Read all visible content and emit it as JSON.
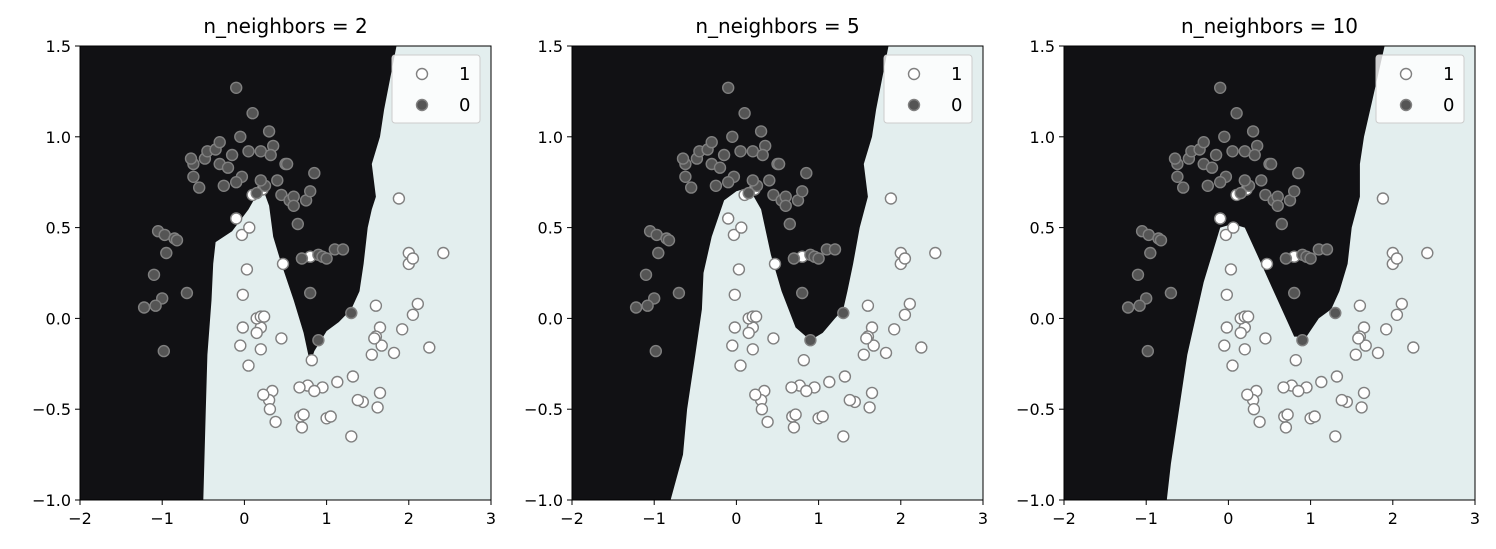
{
  "colors": {
    "class1_region": "#e3eeee",
    "class0_region": "#111114",
    "class1_fill": "#ffffff",
    "class0_fill": "#555555",
    "marker_edge": "#808080"
  },
  "chart_data": [
    {
      "type": "scatter",
      "title": "n_neighbors = 2",
      "xlim": [
        -2,
        3
      ],
      "ylim": [
        -1,
        1.5
      ],
      "xticks": [
        -2,
        -1,
        0,
        1,
        2,
        3
      ],
      "xtick_labels": [
        "−2",
        "−1",
        "0",
        "1",
        "2",
        "3"
      ],
      "yticks": [
        -1.0,
        -0.5,
        0.0,
        0.5,
        1.0,
        1.5
      ],
      "ytick_labels": [
        "−1.0",
        "−0.5",
        "0.0",
        "0.5",
        "1.0",
        "1.5"
      ],
      "grid": false,
      "legend_position": "top-right",
      "decision_boundary": [
        [
          1.85,
          1.5
        ],
        [
          1.7,
          1.15
        ],
        [
          1.65,
          1.0
        ],
        [
          1.55,
          0.85
        ],
        [
          1.6,
          0.67
        ],
        [
          1.55,
          0.6
        ],
        [
          1.5,
          0.5
        ],
        [
          1.45,
          0.3
        ],
        [
          1.4,
          0.15
        ],
        [
          1.3,
          0.05
        ],
        [
          1.15,
          -0.02
        ],
        [
          1.0,
          -0.07
        ],
        [
          0.85,
          -0.18
        ],
        [
          0.8,
          -0.25
        ],
        [
          0.72,
          -0.08
        ],
        [
          0.6,
          0.1
        ],
        [
          0.45,
          0.3
        ],
        [
          0.35,
          0.45
        ],
        [
          0.3,
          0.62
        ],
        [
          0.22,
          0.72
        ],
        [
          0.15,
          0.68
        ],
        [
          0.05,
          0.6
        ],
        [
          -0.15,
          0.48
        ],
        [
          -0.35,
          0.42
        ],
        [
          -0.38,
          0.3
        ],
        [
          -0.4,
          0.1
        ],
        [
          -0.45,
          -0.2
        ],
        [
          -0.47,
          -0.5
        ],
        [
          -0.5,
          -1.0
        ]
      ],
      "series": [
        {
          "name": "1",
          "x": [
            1.88,
            2.0,
            2.0,
            2.11,
            2.42,
            2.05,
            1.6,
            2.05,
            1.92,
            1.65,
            1.6,
            1.67,
            1.82,
            1.55,
            1.58,
            1.65,
            1.44,
            1.38,
            1.3,
            1.13,
            1.32,
            1.0,
            1.05,
            0.95,
            0.77,
            0.67,
            0.7,
            0.82,
            0.68,
            0.72,
            0.38,
            0.34,
            0.3,
            0.31,
            0.23,
            0.2,
            0.15,
            0.2,
            0.05,
            -0.05,
            -0.02,
            0.03,
            -0.02,
            -0.03,
            0.15,
            0.2,
            0.24,
            0.47,
            0.45,
            0.85,
            2.25,
            1.62,
            0.8,
            0.22,
            0.1,
            0.06,
            -0.1
          ],
          "y": [
            0.66,
            0.36,
            0.3,
            0.08,
            0.36,
            0.02,
            0.07,
            0.33,
            -0.06,
            -0.05,
            -0.1,
            -0.15,
            -0.19,
            -0.2,
            -0.11,
            -0.41,
            -0.46,
            -0.45,
            -0.65,
            -0.35,
            -0.32,
            -0.55,
            -0.54,
            -0.38,
            -0.37,
            -0.38,
            -0.6,
            -0.23,
            -0.54,
            -0.53,
            -0.57,
            -0.4,
            -0.45,
            -0.5,
            -0.42,
            -0.05,
            -0.08,
            -0.17,
            -0.26,
            -0.15,
            -0.05,
            0.27,
            0.13,
            0.46,
            0.0,
            0.01,
            0.01,
            0.3,
            -0.11,
            -0.4,
            -0.16,
            -0.49,
            0.34,
            0.71,
            0.68,
            0.5,
            0.55
          ]
        },
        {
          "name": "0",
          "x": [
            -1.05,
            -0.97,
            -0.85,
            -0.82,
            -1.1,
            -0.95,
            -0.7,
            -1.0,
            -1.08,
            -1.22,
            -0.98,
            -0.62,
            -0.62,
            -0.55,
            -0.48,
            -0.45,
            -0.35,
            -0.3,
            -0.25,
            -0.2,
            -0.15,
            -0.1,
            -0.05,
            -0.03,
            0.05,
            0.1,
            0.15,
            0.2,
            0.25,
            0.3,
            0.35,
            0.4,
            0.45,
            0.5,
            0.55,
            0.6,
            0.65,
            0.7,
            0.75,
            0.8,
            0.85,
            0.9,
            0.95,
            1.0,
            1.1,
            1.2,
            0.8,
            0.9,
            -0.1,
            0.32,
            0.52,
            1.3,
            0.6,
            -0.65,
            -0.3,
            0.2
          ],
          "y": [
            0.48,
            0.46,
            0.44,
            0.43,
            0.24,
            0.36,
            0.14,
            0.11,
            0.07,
            0.06,
            -0.18,
            0.85,
            0.78,
            0.72,
            0.88,
            0.92,
            0.93,
            0.85,
            0.73,
            0.83,
            0.9,
            1.27,
            1.0,
            0.78,
            0.92,
            1.13,
            0.69,
            0.92,
            0.73,
            1.03,
            0.95,
            0.76,
            0.68,
            0.85,
            0.65,
            0.67,
            0.52,
            0.33,
            0.65,
            0.7,
            0.8,
            0.35,
            0.34,
            0.33,
            0.38,
            0.38,
            0.14,
            -0.12,
            0.75,
            0.9,
            0.85,
            0.03,
            0.62,
            0.88,
            0.97,
            0.76
          ]
        }
      ]
    },
    {
      "type": "scatter",
      "title": "n_neighbors = 5",
      "xlim": [
        -2,
        3
      ],
      "ylim": [
        -1,
        1.5
      ],
      "xticks": [
        -2,
        -1,
        0,
        1,
        2,
        3
      ],
      "xtick_labels": [
        "−2",
        "−1",
        "0",
        "1",
        "2",
        "3"
      ],
      "yticks": [
        -1.0,
        -0.5,
        0.0,
        0.5,
        1.0,
        1.5
      ],
      "ytick_labels": [
        "−1.0",
        "−0.5",
        "0.0",
        "0.5",
        "1.0",
        "1.5"
      ],
      "grid": false,
      "legend_position": "top-right",
      "decision_boundary": [
        [
          1.85,
          1.5
        ],
        [
          1.7,
          1.15
        ],
        [
          1.65,
          1.0
        ],
        [
          1.55,
          0.85
        ],
        [
          1.6,
          0.67
        ],
        [
          1.5,
          0.5
        ],
        [
          1.42,
          0.3
        ],
        [
          1.35,
          0.15
        ],
        [
          1.3,
          0.05
        ],
        [
          1.2,
          0.0
        ],
        [
          1.05,
          -0.08
        ],
        [
          0.9,
          -0.12
        ],
        [
          0.72,
          -0.05
        ],
        [
          0.55,
          0.15
        ],
        [
          0.42,
          0.35
        ],
        [
          0.3,
          0.6
        ],
        [
          0.15,
          0.72
        ],
        [
          0.0,
          0.7
        ],
        [
          -0.15,
          0.65
        ],
        [
          -0.3,
          0.45
        ],
        [
          -0.4,
          0.25
        ],
        [
          -0.42,
          0.05
        ],
        [
          -0.5,
          -0.2
        ],
        [
          -0.6,
          -0.5
        ],
        [
          -0.65,
          -0.75
        ],
        [
          -0.8,
          -1.0
        ]
      ],
      "series": [
        {
          "name": "1",
          "x": [
            1.88,
            2.0,
            2.0,
            2.11,
            2.42,
            2.05,
            1.6,
            2.05,
            1.92,
            1.65,
            1.6,
            1.67,
            1.82,
            1.55,
            1.58,
            1.65,
            1.44,
            1.38,
            1.3,
            1.13,
            1.32,
            1.0,
            1.05,
            0.95,
            0.77,
            0.67,
            0.7,
            0.82,
            0.68,
            0.72,
            0.38,
            0.34,
            0.3,
            0.31,
            0.23,
            0.2,
            0.15,
            0.2,
            0.05,
            -0.05,
            -0.02,
            0.03,
            -0.02,
            -0.03,
            0.15,
            0.2,
            0.24,
            0.47,
            0.45,
            0.85,
            2.25,
            1.62,
            0.8,
            0.22,
            0.1,
            0.06,
            -0.1
          ],
          "y": [
            0.66,
            0.36,
            0.3,
            0.08,
            0.36,
            0.02,
            0.07,
            0.33,
            -0.06,
            -0.05,
            -0.1,
            -0.15,
            -0.19,
            -0.2,
            -0.11,
            -0.41,
            -0.46,
            -0.45,
            -0.65,
            -0.35,
            -0.32,
            -0.55,
            -0.54,
            -0.38,
            -0.37,
            -0.38,
            -0.6,
            -0.23,
            -0.54,
            -0.53,
            -0.57,
            -0.4,
            -0.45,
            -0.5,
            -0.42,
            -0.05,
            -0.08,
            -0.17,
            -0.26,
            -0.15,
            -0.05,
            0.27,
            0.13,
            0.46,
            0.0,
            0.01,
            0.01,
            0.3,
            -0.11,
            -0.4,
            -0.16,
            -0.49,
            0.34,
            0.71,
            0.68,
            0.5,
            0.55
          ]
        },
        {
          "name": "0",
          "x": [
            -1.05,
            -0.97,
            -0.85,
            -0.82,
            -1.1,
            -0.95,
            -0.7,
            -1.0,
            -1.08,
            -1.22,
            -0.98,
            -0.62,
            -0.62,
            -0.55,
            -0.48,
            -0.45,
            -0.35,
            -0.3,
            -0.25,
            -0.2,
            -0.15,
            -0.1,
            -0.05,
            -0.03,
            0.05,
            0.1,
            0.15,
            0.2,
            0.25,
            0.3,
            0.35,
            0.4,
            0.45,
            0.5,
            0.55,
            0.6,
            0.65,
            0.7,
            0.75,
            0.8,
            0.85,
            0.9,
            0.95,
            1.0,
            1.1,
            1.2,
            0.8,
            0.9,
            -0.1,
            0.32,
            0.52,
            1.3,
            0.6,
            -0.65,
            -0.3,
            0.2
          ],
          "y": [
            0.48,
            0.46,
            0.44,
            0.43,
            0.24,
            0.36,
            0.14,
            0.11,
            0.07,
            0.06,
            -0.18,
            0.85,
            0.78,
            0.72,
            0.88,
            0.92,
            0.93,
            0.85,
            0.73,
            0.83,
            0.9,
            1.27,
            1.0,
            0.78,
            0.92,
            1.13,
            0.69,
            0.92,
            0.73,
            1.03,
            0.95,
            0.76,
            0.68,
            0.85,
            0.65,
            0.67,
            0.52,
            0.33,
            0.65,
            0.7,
            0.8,
            0.35,
            0.34,
            0.33,
            0.38,
            0.38,
            0.14,
            -0.12,
            0.75,
            0.9,
            0.85,
            0.03,
            0.62,
            0.88,
            0.97,
            0.76
          ]
        }
      ]
    },
    {
      "type": "scatter",
      "title": "n_neighbors = 10",
      "xlim": [
        -2,
        3
      ],
      "ylim": [
        -1,
        1.5
      ],
      "xticks": [
        -2,
        -1,
        0,
        1,
        2,
        3
      ],
      "xtick_labels": [
        "−2",
        "−1",
        "0",
        "1",
        "2",
        "3"
      ],
      "yticks": [
        -1.0,
        -0.5,
        0.0,
        0.5,
        1.0,
        1.5
      ],
      "ytick_labels": [
        "−1.0",
        "−0.5",
        "0.0",
        "0.5",
        "1.0",
        "1.5"
      ],
      "grid": false,
      "legend_position": "top-right",
      "decision_boundary": [
        [
          1.9,
          1.5
        ],
        [
          1.75,
          1.2
        ],
        [
          1.65,
          1.0
        ],
        [
          1.6,
          0.85
        ],
        [
          1.6,
          0.67
        ],
        [
          1.5,
          0.5
        ],
        [
          1.45,
          0.3
        ],
        [
          1.35,
          0.15
        ],
        [
          1.25,
          0.05
        ],
        [
          1.1,
          0.0
        ],
        [
          0.95,
          -0.1
        ],
        [
          0.8,
          -0.1
        ],
        [
          0.65,
          0.05
        ],
        [
          0.5,
          0.2
        ],
        [
          0.35,
          0.35
        ],
        [
          0.2,
          0.5
        ],
        [
          0.05,
          0.52
        ],
        [
          -0.1,
          0.5
        ],
        [
          -0.2,
          0.35
        ],
        [
          -0.3,
          0.2
        ],
        [
          -0.4,
          0.0
        ],
        [
          -0.5,
          -0.2
        ],
        [
          -0.6,
          -0.5
        ],
        [
          -0.7,
          -0.8
        ],
        [
          -0.75,
          -1.0
        ]
      ],
      "series": [
        {
          "name": "1",
          "x": [
            1.88,
            2.0,
            2.0,
            2.11,
            2.42,
            2.05,
            1.6,
            2.05,
            1.92,
            1.65,
            1.6,
            1.67,
            1.82,
            1.55,
            1.58,
            1.65,
            1.44,
            1.38,
            1.3,
            1.13,
            1.32,
            1.0,
            1.05,
            0.95,
            0.77,
            0.67,
            0.7,
            0.82,
            0.68,
            0.72,
            0.38,
            0.34,
            0.3,
            0.31,
            0.23,
            0.2,
            0.15,
            0.2,
            0.05,
            -0.05,
            -0.02,
            0.03,
            -0.02,
            -0.03,
            0.15,
            0.2,
            0.24,
            0.47,
            0.45,
            0.85,
            2.25,
            1.62,
            0.8,
            0.22,
            0.1,
            0.06,
            -0.1
          ],
          "y": [
            0.66,
            0.36,
            0.3,
            0.08,
            0.36,
            0.02,
            0.07,
            0.33,
            -0.06,
            -0.05,
            -0.1,
            -0.15,
            -0.19,
            -0.2,
            -0.11,
            -0.41,
            -0.46,
            -0.45,
            -0.65,
            -0.35,
            -0.32,
            -0.55,
            -0.54,
            -0.38,
            -0.37,
            -0.38,
            -0.6,
            -0.23,
            -0.54,
            -0.53,
            -0.57,
            -0.4,
            -0.45,
            -0.5,
            -0.42,
            -0.05,
            -0.08,
            -0.17,
            -0.26,
            -0.15,
            -0.05,
            0.27,
            0.13,
            0.46,
            0.0,
            0.01,
            0.01,
            0.3,
            -0.11,
            -0.4,
            -0.16,
            -0.49,
            0.34,
            0.71,
            0.68,
            0.5,
            0.55
          ]
        },
        {
          "name": "0",
          "x": [
            -1.05,
            -0.97,
            -0.85,
            -0.82,
            -1.1,
            -0.95,
            -0.7,
            -1.0,
            -1.08,
            -1.22,
            -0.98,
            -0.62,
            -0.62,
            -0.55,
            -0.48,
            -0.45,
            -0.35,
            -0.3,
            -0.25,
            -0.2,
            -0.15,
            -0.1,
            -0.05,
            -0.03,
            0.05,
            0.1,
            0.15,
            0.2,
            0.25,
            0.3,
            0.35,
            0.4,
            0.45,
            0.5,
            0.55,
            0.6,
            0.65,
            0.7,
            0.75,
            0.8,
            0.85,
            0.9,
            0.95,
            1.0,
            1.1,
            1.2,
            0.8,
            0.9,
            -0.1,
            0.32,
            0.52,
            1.3,
            0.6,
            -0.65,
            -0.3,
            0.2
          ],
          "y": [
            0.48,
            0.46,
            0.44,
            0.43,
            0.24,
            0.36,
            0.14,
            0.11,
            0.07,
            0.06,
            -0.18,
            0.85,
            0.78,
            0.72,
            0.88,
            0.92,
            0.93,
            0.85,
            0.73,
            0.83,
            0.9,
            1.27,
            1.0,
            0.78,
            0.92,
            1.13,
            0.69,
            0.92,
            0.73,
            1.03,
            0.95,
            0.76,
            0.68,
            0.85,
            0.65,
            0.67,
            0.52,
            0.33,
            0.65,
            0.7,
            0.8,
            0.35,
            0.34,
            0.33,
            0.38,
            0.38,
            0.14,
            -0.12,
            0.75,
            0.9,
            0.85,
            0.03,
            0.62,
            0.88,
            0.97,
            0.76
          ]
        }
      ]
    }
  ]
}
